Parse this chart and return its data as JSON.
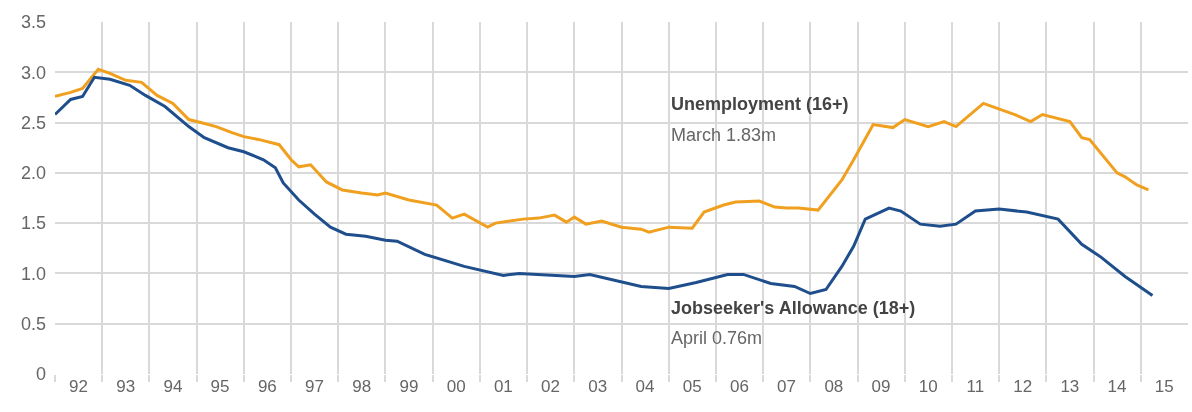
{
  "chart_data": {
    "type": "line",
    "series": [
      {
        "name": "Unemployment (16+)",
        "color": "#f0a01e",
        "x": [
          "1992-01",
          "1992-05",
          "1992-08",
          "1992-12",
          "1993-03",
          "1993-07",
          "1993-11",
          "1994-03",
          "1994-07",
          "1994-11",
          "1995-02",
          "1995-06",
          "1995-10",
          "1996-01",
          "1996-05",
          "1996-10",
          "1997-01",
          "1997-03",
          "1997-06",
          "1997-10",
          "1998-02",
          "1998-07",
          "1998-11",
          "1999-01",
          "1999-07",
          "2000-02",
          "2000-06",
          "2000-09",
          "2001-03",
          "2001-05",
          "2001-12",
          "2002-04",
          "2002-08",
          "2002-11",
          "2003-01",
          "2003-04",
          "2003-08",
          "2004-01",
          "2004-06",
          "2004-08",
          "2005-01",
          "2005-07",
          "2005-10",
          "2006-03",
          "2006-06",
          "2006-12",
          "2007-04",
          "2007-07",
          "2007-10",
          "2008-03",
          "2008-09",
          "2008-12",
          "2009-05",
          "2009-10",
          "2010-01",
          "2010-07",
          "2010-11",
          "2011-02",
          "2011-09",
          "2012-05",
          "2012-09",
          "2012-12",
          "2013-07",
          "2013-10",
          "2013-12",
          "2014-07",
          "2014-09",
          "2014-12",
          "2015-03"
        ],
        "values": [
          2.76,
          2.8,
          2.84,
          3.03,
          2.99,
          2.92,
          2.9,
          2.77,
          2.69,
          2.53,
          2.5,
          2.46,
          2.4,
          2.36,
          2.33,
          2.28,
          2.13,
          2.06,
          2.08,
          1.91,
          1.83,
          1.8,
          1.78,
          1.8,
          1.73,
          1.68,
          1.55,
          1.59,
          1.46,
          1.5,
          1.54,
          1.55,
          1.58,
          1.51,
          1.56,
          1.49,
          1.52,
          1.46,
          1.44,
          1.41,
          1.46,
          1.45,
          1.61,
          1.68,
          1.71,
          1.72,
          1.66,
          1.65,
          1.65,
          1.63,
          1.93,
          2.13,
          2.48,
          2.45,
          2.53,
          2.46,
          2.51,
          2.46,
          2.69,
          2.58,
          2.51,
          2.58,
          2.51,
          2.35,
          2.33,
          2.0,
          1.96,
          1.88,
          1.83
        ]
      },
      {
        "name": "Jobseeker's Allowance (18+)",
        "color": "#1f4e8c",
        "x": [
          "1992-01",
          "1992-05",
          "1992-08",
          "1992-11",
          "1993-03",
          "1993-08",
          "1993-12",
          "1994-05",
          "1994-11",
          "1995-03",
          "1995-09",
          "1996-01",
          "1996-06",
          "1996-09",
          "1996-11",
          "1997-03",
          "1997-07",
          "1997-11",
          "1998-03",
          "1998-08",
          "1999-01",
          "1999-04",
          "1999-11",
          "2000-09",
          "2001-07",
          "2001-11",
          "2003-01",
          "2003-05",
          "2004-06",
          "2005-01",
          "2005-08",
          "2006-04",
          "2006-08",
          "2007-03",
          "2007-09",
          "2008-01",
          "2008-05",
          "2008-09",
          "2008-12",
          "2009-03",
          "2009-09",
          "2009-12",
          "2010-05",
          "2010-10",
          "2011-02",
          "2011-07",
          "2012-01",
          "2012-08",
          "2013-04",
          "2013-10",
          "2014-03",
          "2014-09",
          "2015-04"
        ],
        "values": [
          2.58,
          2.73,
          2.76,
          2.95,
          2.93,
          2.87,
          2.77,
          2.66,
          2.46,
          2.35,
          2.25,
          2.21,
          2.13,
          2.05,
          1.9,
          1.73,
          1.59,
          1.46,
          1.39,
          1.37,
          1.33,
          1.32,
          1.19,
          1.07,
          0.98,
          1.0,
          0.97,
          0.99,
          0.87,
          0.85,
          0.91,
          0.99,
          0.99,
          0.9,
          0.87,
          0.8,
          0.84,
          1.07,
          1.27,
          1.54,
          1.65,
          1.62,
          1.49,
          1.47,
          1.49,
          1.62,
          1.64,
          1.61,
          1.54,
          1.29,
          1.16,
          0.97,
          0.78
        ]
      }
    ],
    "annotations": [
      "March 1.83m",
      "April 0.76m"
    ],
    "xlim": [
      "1992",
      "2016"
    ],
    "xticks": [
      {
        "value": "1992",
        "label": null
      },
      {
        "value": "1992-07",
        "label": "92"
      },
      {
        "value": "1993",
        "label": null
      },
      {
        "value": "1993-07",
        "label": "93"
      },
      {
        "value": "1994",
        "label": null
      },
      {
        "value": "1994-07",
        "label": "94"
      },
      {
        "value": "1995",
        "label": null
      },
      {
        "value": "1995-07",
        "label": "95"
      },
      {
        "value": "1996",
        "label": null
      },
      {
        "value": "1996-07",
        "label": "96"
      },
      {
        "value": "1997",
        "label": null
      },
      {
        "value": "1997-07",
        "label": "97"
      },
      {
        "value": "1998",
        "label": null
      },
      {
        "value": "1998-07",
        "label": "98"
      },
      {
        "value": "1999",
        "label": null
      },
      {
        "value": "1999-07",
        "label": "99"
      },
      {
        "value": "2000",
        "label": null
      },
      {
        "value": "2000-07",
        "label": "00"
      },
      {
        "value": "2001",
        "label": null
      },
      {
        "value": "2001-07",
        "label": "01"
      },
      {
        "value": "2002",
        "label": null
      },
      {
        "value": "2002-07",
        "label": "02"
      },
      {
        "value": "2003",
        "label": null
      },
      {
        "value": "2003-07",
        "label": "03"
      },
      {
        "value": "2004",
        "label": null
      },
      {
        "value": "2004-07",
        "label": "04"
      },
      {
        "value": "2005",
        "label": null
      },
      {
        "value": "2005-07",
        "label": "05"
      },
      {
        "value": "2006",
        "label": null
      },
      {
        "value": "2006-07",
        "label": "06"
      },
      {
        "value": "2007",
        "label": null
      },
      {
        "value": "2007-07",
        "label": "07"
      },
      {
        "value": "2008",
        "label": null
      },
      {
        "value": "2008-07",
        "label": "08"
      },
      {
        "value": "2009",
        "label": null
      },
      {
        "value": "2009-07",
        "label": "09"
      },
      {
        "value": "2010",
        "label": null
      },
      {
        "value": "2010-07",
        "label": "10"
      },
      {
        "value": "2011",
        "label": null
      },
      {
        "value": "2011-07",
        "label": "11"
      },
      {
        "value": "2012",
        "label": null
      },
      {
        "value": "2012-07",
        "label": "12"
      },
      {
        "value": "2013",
        "label": null
      },
      {
        "value": "2013-07",
        "label": "13"
      },
      {
        "value": "2014",
        "label": null
      },
      {
        "value": "2014-07",
        "label": "14"
      },
      {
        "value": "2015",
        "label": null
      },
      {
        "value": "2015-07",
        "label": "15"
      }
    ],
    "ylim": [
      0,
      3.5
    ],
    "yticks": [
      {
        "value": 0,
        "label": "0"
      },
      {
        "value": 0.5,
        "label": "0.5"
      },
      {
        "value": 1,
        "label": "1.0"
      },
      {
        "value": 1.5,
        "label": "1.5"
      },
      {
        "value": 2,
        "label": "2.0"
      },
      {
        "value": 2.5,
        "label": "2.5"
      },
      {
        "value": 3,
        "label": "3.0"
      },
      {
        "value": 3.5,
        "label": "3.5"
      }
    ],
    "grid": true,
    "legend": false,
    "marker": "none",
    "line_style": "solid"
  }
}
